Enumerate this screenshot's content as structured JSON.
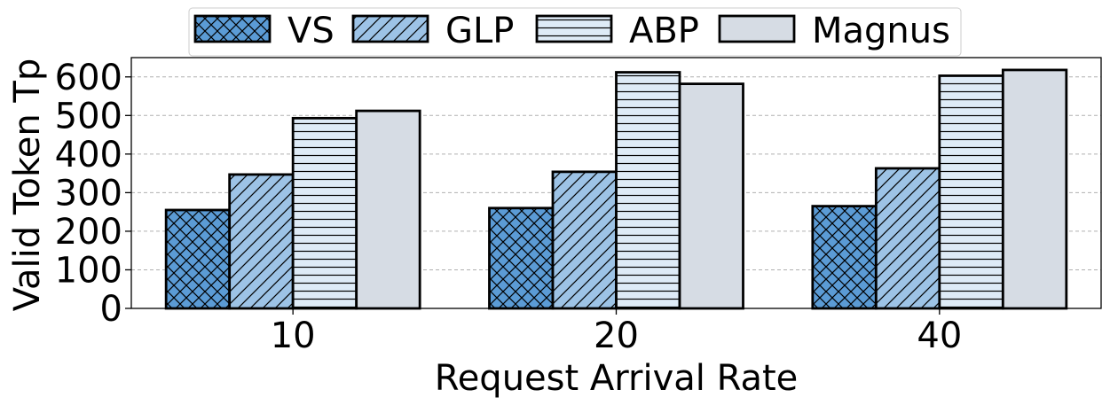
{
  "chart_data": {
    "type": "bar",
    "title": "",
    "xlabel": "Request Arrival Rate",
    "ylabel": "Valid Token Tp",
    "categories": [
      "10",
      "20",
      "40"
    ],
    "ylim": [
      0,
      650
    ],
    "yticks": [
      0,
      100,
      200,
      300,
      400,
      500,
      600
    ],
    "grid": "horizontal-dashed",
    "legend_position": "top-center",
    "series": [
      {
        "name": "VS",
        "values": [
          255,
          260,
          265
        ],
        "color": "#5b9bd5",
        "hatch": "cross-diagonal"
      },
      {
        "name": "GLP",
        "values": [
          347,
          354,
          363
        ],
        "color": "#9dc3e6",
        "hatch": "diagonal"
      },
      {
        "name": "ABP",
        "values": [
          493,
          612,
          603
        ],
        "color": "#deebf7",
        "hatch": "horizontal"
      },
      {
        "name": "Magnus",
        "values": [
          512,
          582,
          618
        ],
        "color": "#d6dce4",
        "hatch": "none"
      }
    ]
  }
}
